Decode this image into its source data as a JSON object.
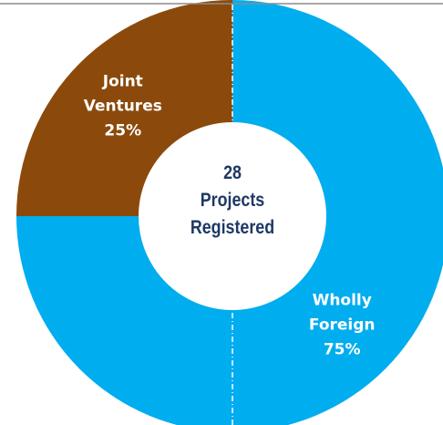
{
  "chart_data": {
    "type": "donut",
    "categories": [
      "Wholly Foreign",
      "Joint Ventures"
    ],
    "values": [
      75,
      25
    ],
    "value_labels": [
      "75%",
      "25%"
    ],
    "colors": [
      "#00adef",
      "#8b4a0c"
    ],
    "center_value": 28,
    "center_label": "Projects Registered"
  }
}
